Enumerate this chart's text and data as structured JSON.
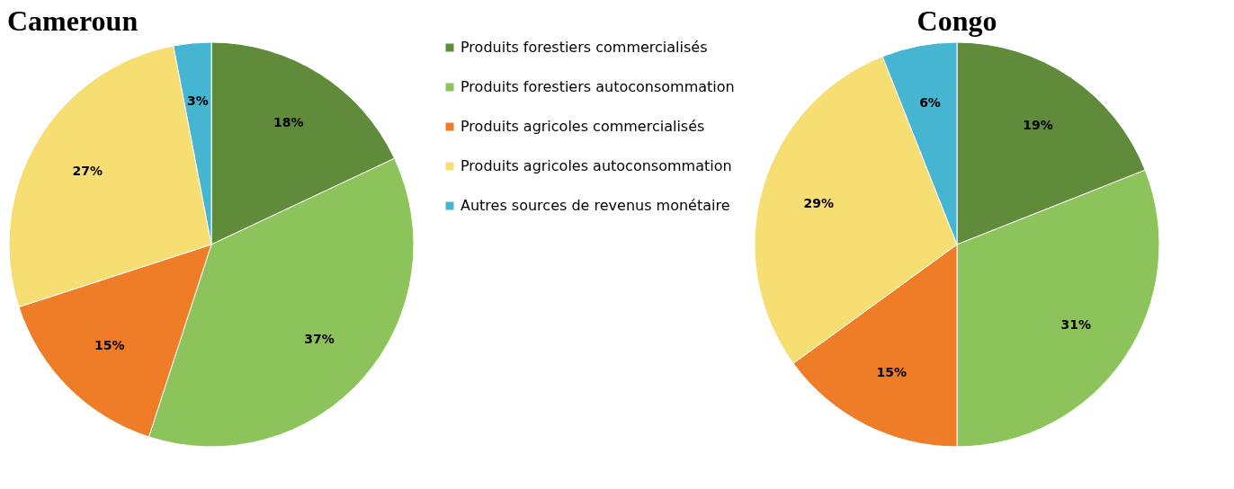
{
  "chart_data": [
    {
      "type": "pie",
      "title": "Cameroun",
      "categories": [
        "Produits forestiers commercialisés",
        "Produits forestiers autoconsommation",
        "Produits agricoles commercialisés",
        "Produits agricoles autoconsommation",
        "Autres sources de revenus monétaire"
      ],
      "values": [
        18,
        37,
        15,
        27,
        3
      ],
      "value_labels": [
        "18%",
        "37%",
        "15%",
        "27%",
        "3%"
      ],
      "colors": [
        "#5f8b3a",
        "#8cc35b",
        "#ef7d27",
        "#f6de72",
        "#46b5d1"
      ],
      "legend": "right"
    },
    {
      "type": "pie",
      "title": "Congo",
      "categories": [
        null,
        null,
        null,
        null,
        null
      ],
      "values": [
        19,
        31,
        15,
        29,
        6
      ],
      "value_labels": [
        "19%",
        "31%",
        "15%",
        "29%",
        "6%"
      ],
      "colors": [
        "#5f8b3a",
        "#8cc35b",
        "#ef7d27",
        "#f6de72",
        "#46b5d1"
      ]
    }
  ]
}
